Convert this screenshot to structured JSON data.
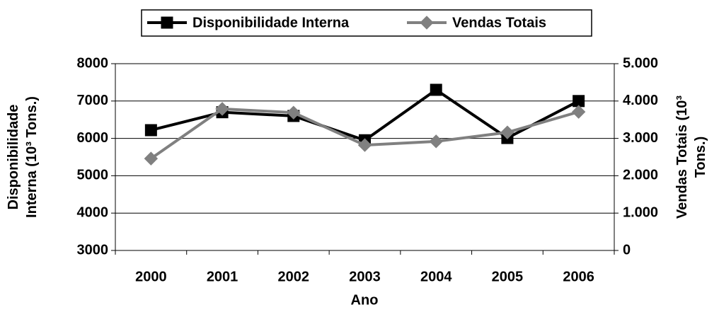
{
  "chart_data": {
    "type": "line",
    "legend": {
      "position": "top"
    },
    "xlabel": "Ano",
    "ylabel": [
      "Disponibilidade",
      "Interna (10³ Tons.)"
    ],
    "y2label": [
      "Vendas Totais (10³",
      "Tons.)"
    ],
    "categories": [
      "2000",
      "2001",
      "2002",
      "2003",
      "2004",
      "2005",
      "2006"
    ],
    "series": [
      {
        "name": "Disponibilidade Interna",
        "color": "#000000",
        "marker": "square",
        "values": [
          6220,
          6700,
          6600,
          5950,
          7300,
          6010,
          7000
        ]
      },
      {
        "name": "Vendas Totais",
        "color": "#808080",
        "marker": "diamond",
        "axis": "y2",
        "values": [
          2460,
          3790,
          3690,
          2820,
          2920,
          3160,
          3710
        ]
      }
    ],
    "ylim": [
      3000,
      8000
    ],
    "yticks": [
      3000,
      4000,
      5000,
      6000,
      7000,
      8000
    ],
    "y2lim": [
      0,
      5000
    ],
    "y2ticks": [
      0,
      {
        "value": 1000,
        "label": "1.000"
      },
      {
        "value": 2000,
        "label": "2.000"
      },
      {
        "value": 3000,
        "label": "3.000"
      },
      {
        "value": 4000,
        "label": "4.000"
      },
      {
        "value": 5000,
        "label": "5.000"
      }
    ],
    "grid": true
  }
}
